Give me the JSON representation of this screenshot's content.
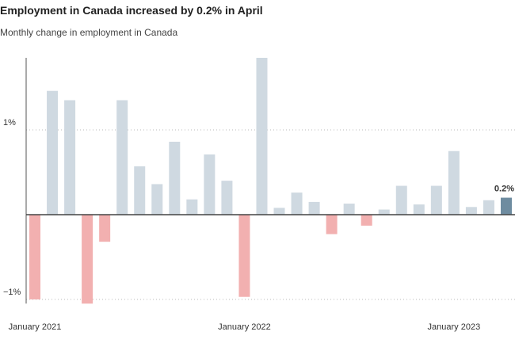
{
  "chart_data": {
    "type": "bar",
    "title": "Employment in Canada increased by 0.2% in April",
    "subtitle": "Monthly change in employment in Canada",
    "categories": [
      "January 2021",
      null,
      null,
      null,
      null,
      null,
      null,
      null,
      null,
      null,
      null,
      null,
      "January 2022",
      null,
      null,
      null,
      null,
      null,
      null,
      null,
      null,
      null,
      null,
      null,
      "January 2023",
      null,
      null,
      null
    ],
    "values": [
      -1.0,
      1.46,
      1.35,
      -1.05,
      -0.32,
      1.35,
      0.57,
      0.36,
      0.86,
      0.18,
      0.71,
      0.4,
      -0.97,
      1.85,
      0.08,
      0.26,
      0.15,
      -0.23,
      0.13,
      -0.13,
      0.06,
      0.34,
      0.12,
      0.34,
      0.75,
      0.09,
      0.17,
      0.2
    ],
    "value_labels": [
      null,
      null,
      null,
      null,
      null,
      null,
      null,
      null,
      null,
      null,
      null,
      null,
      null,
      null,
      null,
      null,
      null,
      null,
      null,
      null,
      null,
      null,
      null,
      null,
      null,
      null,
      null,
      "0.2%"
    ],
    "colors": [
      "#f2b0b0",
      "#cfd9e1",
      "#cfd9e1",
      "#f2b0b0",
      "#f2b0b0",
      "#cfd9e1",
      "#cfd9e1",
      "#cfd9e1",
      "#cfd9e1",
      "#cfd9e1",
      "#cfd9e1",
      "#cfd9e1",
      "#f2b0b0",
      "#cfd9e1",
      "#cfd9e1",
      "#cfd9e1",
      "#cfd9e1",
      "#f2b0b0",
      "#cfd9e1",
      "#f2b0b0",
      "#cfd9e1",
      "#cfd9e1",
      "#cfd9e1",
      "#cfd9e1",
      "#cfd9e1",
      "#cfd9e1",
      "#cfd9e1",
      "#6e8ca0"
    ],
    "ylim": [
      -1.05,
      1.85
    ],
    "yticks": [
      {
        "value": 1,
        "label": "1%"
      },
      {
        "value": -1,
        "label": "−1%"
      }
    ],
    "grid": true
  }
}
